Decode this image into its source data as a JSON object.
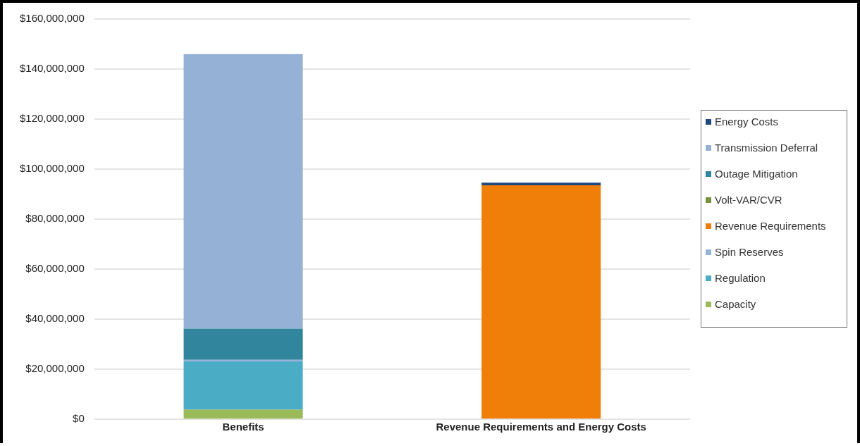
{
  "chart_data": {
    "type": "bar",
    "stacked": true,
    "categories": [
      "Benefits",
      "Revenue Requirements and Energy Costs"
    ],
    "series": [
      {
        "name": "Capacity",
        "color": "#9bbb59",
        "values": [
          3800000.0,
          null
        ]
      },
      {
        "name": "Regulation",
        "color": "#4bacc6",
        "values": [
          19300000.0,
          null
        ]
      },
      {
        "name": "Spin Reserves",
        "color": "#95b3d7",
        "values": [
          600000.0,
          null
        ]
      },
      {
        "name": "Revenue Requirements",
        "color": "#f07f09",
        "values": [
          null,
          93500000.0
        ]
      },
      {
        "name": "Volt-VAR/CVR",
        "color": "#77933c",
        "values": [
          0,
          null
        ]
      },
      {
        "name": "Outage Mitigation",
        "color": "#31859c",
        "values": [
          12500000.0,
          null
        ]
      },
      {
        "name": "Transmission Deferral",
        "color": "#95b1d6",
        "values": [
          109800000.0,
          null
        ]
      },
      {
        "name": "Energy Costs",
        "color": "#1f497d",
        "values": [
          null,
          1100000.0
        ]
      }
    ],
    "ylim": [
      0,
      160000000
    ],
    "yticks": [
      {
        "value": 0,
        "label": "$0"
      },
      {
        "value": 20000000,
        "label": "$20,000,000"
      },
      {
        "value": 40000000,
        "label": "$40,000,000"
      },
      {
        "value": 60000000,
        "label": "$60,000,000"
      },
      {
        "value": 80000000,
        "label": "$80,000,000"
      },
      {
        "value": 100000000,
        "label": "$100,000,000"
      },
      {
        "value": 120000000,
        "label": "$120,000,000"
      },
      {
        "value": 140000000,
        "label": "$140,000,000"
      },
      {
        "value": 160000000,
        "label": "$160,000,000"
      }
    ],
    "grid": "y",
    "legend": "right"
  }
}
